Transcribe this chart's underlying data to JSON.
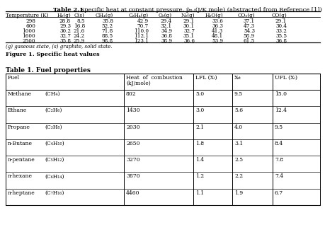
{
  "table21_title_bold": "Table 2.1",
  "table21_title_rest": "  Specific heat at constant pressure, ṗₚ,ᵢ(J/K mole) (abstracted from Reference [1])",
  "table21_headers": [
    "Temperature (K)",
    "H₂(g)",
    "C(s)",
    "CH₄(g)",
    "C₂H₄(g)",
    "O₂(g)",
    "N₂(g)",
    "H₂O(g)",
    "CO₂(g)",
    "CO(g)"
  ],
  "table21_rows": [
    [
      "298",
      "28.8",
      "8.5",
      "35.8",
      "42.9",
      "29.4",
      "29.1",
      "33.6",
      "37.1",
      "29.1"
    ],
    [
      "600",
      "29.3",
      "16.8",
      "52.2",
      "70.7",
      "32.1",
      "30.1",
      "36.3",
      "47.3",
      "30.4"
    ],
    [
      "1000",
      "30.2",
      "21.6",
      "71.8",
      "110.0",
      "34.9",
      "32.7",
      "41.3",
      "54.3",
      "33.2"
    ],
    [
      "1600",
      "32.7",
      "24.2",
      "88.5",
      "112.1",
      "36.8",
      "35.1",
      "48.1",
      "58.9",
      "35.5"
    ],
    [
      "2500",
      "35.8",
      "25.9",
      "98.8",
      "123.1",
      "38.9",
      "36.6",
      "53.9",
      "61.5",
      "36.8"
    ]
  ],
  "table21_footnote": "(g) gaseous state, (s) graphite, solid state.",
  "figure1_caption": "Figure 1. Specific heat values",
  "table1_title": "Table 1. Fuel properties",
  "table1_col1_headers": [
    "Fuel",
    "Heat of combustion\n(kJ/mole)",
    "LFL (Xᵢ)",
    "Xₛₜ",
    "UFL (Xᵢ)"
  ],
  "table1_rows": [
    [
      "Methane",
      "(CH₄)",
      "802",
      "5.0",
      "9.5",
      "15.0"
    ],
    [
      "Ethane",
      "(C₂H₆)",
      "1430",
      "3.0",
      "5.6",
      "12.4"
    ],
    [
      "Propane",
      "(C₃H₈)",
      "2030",
      "2.1",
      "4.0",
      "9.5"
    ],
    [
      "n-Butane",
      "(C₄H₁₀)",
      "2650",
      "1.8",
      "3.1",
      "8.4"
    ],
    [
      "n-pentane",
      "(C₅H₁₂)",
      "3270",
      "1.4",
      "2.5",
      "7.8"
    ],
    [
      "n-hexane",
      "(C₆H₁₄)",
      "3870",
      "1.2",
      "2.2",
      "7.4"
    ],
    [
      "n-heptane",
      "(C₇H₁₆)",
      "4460",
      "1.1",
      "1.9",
      "6.7"
    ]
  ],
  "bg_color": "#ffffff",
  "text_color": "#000000",
  "line_color": "#000000"
}
